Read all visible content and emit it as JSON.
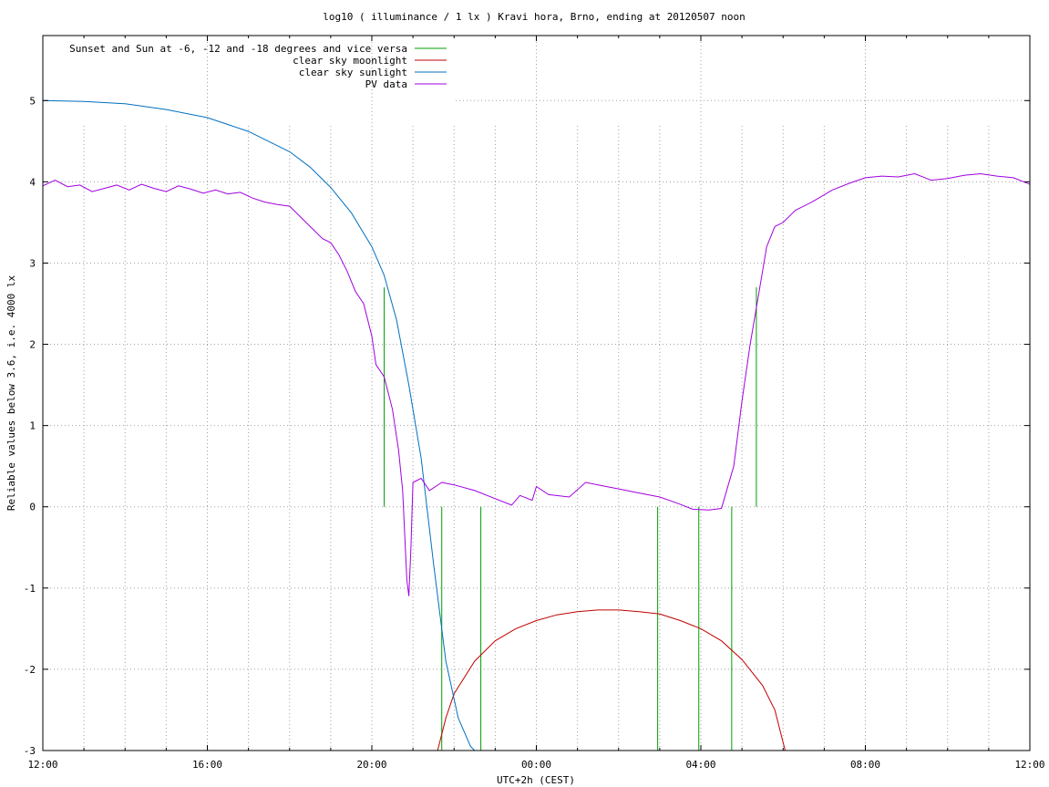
{
  "chart_data": {
    "type": "line",
    "title": "log10 ( illuminance / 1 lx ) Kravi hora, Brno, ending at 20120507 noon",
    "xlabel": "UTC+2h (CEST)",
    "ylabel": "Reliable values below 3.6, i.e. 4000 lx",
    "xlim_hours": [
      12,
      36
    ],
    "ylim": [
      -3,
      5.8
    ],
    "x_ticks": [
      {
        "h": 12,
        "label": "12:00"
      },
      {
        "h": 16,
        "label": "16:00"
      },
      {
        "h": 20,
        "label": "20:00"
      },
      {
        "h": 24,
        "label": "00:00"
      },
      {
        "h": 28,
        "label": "04:00"
      },
      {
        "h": 32,
        "label": "08:00"
      },
      {
        "h": 36,
        "label": "12:00"
      }
    ],
    "y_ticks": [
      {
        "v": -3,
        "label": "-3"
      },
      {
        "v": -2,
        "label": "-2"
      },
      {
        "v": -1,
        "label": "-1"
      },
      {
        "v": 0,
        "label": "0"
      },
      {
        "v": 1,
        "label": "1"
      },
      {
        "v": 2,
        "label": "2"
      },
      {
        "v": 3,
        "label": "3"
      },
      {
        "v": 4,
        "label": "4"
      },
      {
        "v": 5,
        "label": "5"
      }
    ],
    "grid": true,
    "legend_position": "top-left",
    "series": [
      {
        "name": "Sunset and Sun at -6, -12 and -18 degrees and vice versa",
        "color": "#00a000",
        "kind": "impulses",
        "points": [
          [
            20.3,
            2.7
          ],
          [
            21.7,
            0
          ],
          [
            22.65,
            0
          ],
          [
            26.95,
            0
          ],
          [
            27.95,
            0
          ],
          [
            28.75,
            0
          ],
          [
            29.35,
            2.7
          ]
        ]
      },
      {
        "name": "clear sky moonlight",
        "color": "#c00000",
        "kind": "line",
        "points": [
          [
            21.6,
            -3.0
          ],
          [
            21.8,
            -2.6
          ],
          [
            22.0,
            -2.3
          ],
          [
            22.5,
            -1.9
          ],
          [
            23.0,
            -1.65
          ],
          [
            23.5,
            -1.5
          ],
          [
            24.0,
            -1.4
          ],
          [
            24.5,
            -1.33
          ],
          [
            25.0,
            -1.29
          ],
          [
            25.5,
            -1.27
          ],
          [
            26.0,
            -1.27
          ],
          [
            26.5,
            -1.29
          ],
          [
            27.0,
            -1.32
          ],
          [
            27.5,
            -1.4
          ],
          [
            28.0,
            -1.5
          ],
          [
            28.5,
            -1.65
          ],
          [
            29.0,
            -1.88
          ],
          [
            29.5,
            -2.2
          ],
          [
            29.8,
            -2.5
          ],
          [
            30.05,
            -3.0
          ]
        ]
      },
      {
        "name": "clear sky sunlight",
        "color": "#0070c0",
        "kind": "line",
        "points": [
          [
            12.0,
            5.0
          ],
          [
            13.0,
            4.99
          ],
          [
            14.0,
            4.96
          ],
          [
            15.0,
            4.89
          ],
          [
            16.0,
            4.79
          ],
          [
            17.0,
            4.62
          ],
          [
            18.0,
            4.37
          ],
          [
            18.5,
            4.18
          ],
          [
            19.0,
            3.93
          ],
          [
            19.5,
            3.62
          ],
          [
            20.0,
            3.2
          ],
          [
            20.3,
            2.85
          ],
          [
            20.6,
            2.3
          ],
          [
            20.9,
            1.5
          ],
          [
            21.2,
            0.6
          ],
          [
            21.5,
            -0.7
          ],
          [
            21.8,
            -1.9
          ],
          [
            22.1,
            -2.6
          ],
          [
            22.4,
            -2.95
          ],
          [
            22.5,
            -3.0
          ]
        ]
      },
      {
        "name": "PV data",
        "color": "#a000e0",
        "kind": "line",
        "points": [
          [
            12.0,
            3.95
          ],
          [
            12.3,
            4.02
          ],
          [
            12.6,
            3.94
          ],
          [
            12.9,
            3.96
          ],
          [
            13.2,
            3.88
          ],
          [
            13.5,
            3.92
          ],
          [
            13.8,
            3.96
          ],
          [
            14.1,
            3.9
          ],
          [
            14.4,
            3.97
          ],
          [
            14.7,
            3.92
          ],
          [
            15.0,
            3.88
          ],
          [
            15.3,
            3.95
          ],
          [
            15.6,
            3.91
          ],
          [
            15.9,
            3.86
          ],
          [
            16.2,
            3.9
          ],
          [
            16.5,
            3.85
          ],
          [
            16.8,
            3.87
          ],
          [
            17.1,
            3.8
          ],
          [
            17.4,
            3.75
          ],
          [
            17.7,
            3.72
          ],
          [
            18.0,
            3.7
          ],
          [
            18.2,
            3.6
          ],
          [
            18.5,
            3.45
          ],
          [
            18.8,
            3.3
          ],
          [
            19.0,
            3.25
          ],
          [
            19.2,
            3.1
          ],
          [
            19.4,
            2.9
          ],
          [
            19.6,
            2.65
          ],
          [
            19.8,
            2.5
          ],
          [
            20.0,
            2.1
          ],
          [
            20.1,
            1.75
          ],
          [
            20.3,
            1.6
          ],
          [
            20.5,
            1.2
          ],
          [
            20.65,
            0.7
          ],
          [
            20.75,
            0.2
          ],
          [
            20.85,
            -0.9
          ],
          [
            20.9,
            -1.1
          ],
          [
            20.95,
            -0.5
          ],
          [
            21.0,
            0.3
          ],
          [
            21.2,
            0.35
          ],
          [
            21.4,
            0.2
          ],
          [
            21.7,
            0.3
          ],
          [
            22.0,
            0.27
          ],
          [
            22.5,
            0.2
          ],
          [
            23.0,
            0.1
          ],
          [
            23.4,
            0.02
          ],
          [
            23.6,
            0.14
          ],
          [
            23.9,
            0.08
          ],
          [
            24.0,
            0.25
          ],
          [
            24.3,
            0.15
          ],
          [
            24.8,
            0.12
          ],
          [
            25.2,
            0.3
          ],
          [
            25.6,
            0.26
          ],
          [
            26.0,
            0.22
          ],
          [
            26.5,
            0.17
          ],
          [
            27.0,
            0.12
          ],
          [
            27.4,
            0.05
          ],
          [
            27.8,
            -0.03
          ],
          [
            28.2,
            -0.04
          ],
          [
            28.5,
            -0.02
          ],
          [
            28.8,
            0.5
          ],
          [
            29.0,
            1.3
          ],
          [
            29.2,
            2.0
          ],
          [
            29.4,
            2.6
          ],
          [
            29.6,
            3.2
          ],
          [
            29.8,
            3.45
          ],
          [
            30.0,
            3.5
          ],
          [
            30.3,
            3.65
          ],
          [
            30.7,
            3.75
          ],
          [
            31.2,
            3.9
          ],
          [
            31.6,
            3.98
          ],
          [
            32.0,
            4.05
          ],
          [
            32.4,
            4.07
          ],
          [
            32.8,
            4.06
          ],
          [
            33.2,
            4.1
          ],
          [
            33.6,
            4.02
          ],
          [
            34.0,
            4.04
          ],
          [
            34.4,
            4.08
          ],
          [
            34.8,
            4.1
          ],
          [
            35.2,
            4.07
          ],
          [
            35.6,
            4.05
          ],
          [
            36.0,
            3.97
          ]
        ]
      }
    ]
  }
}
